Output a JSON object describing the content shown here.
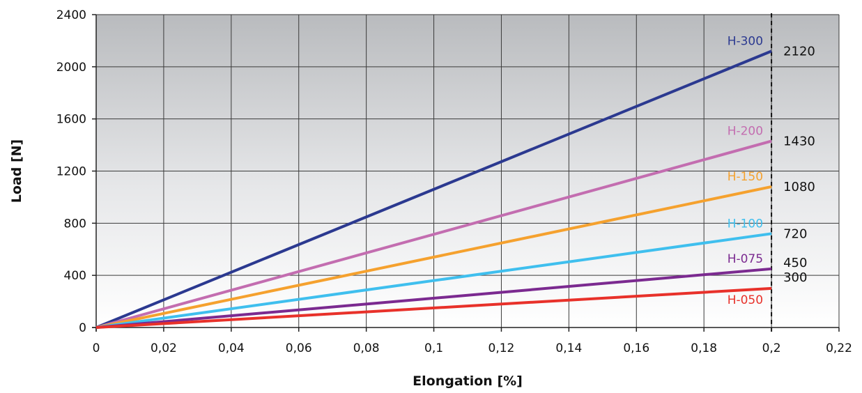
{
  "chart_data": {
    "type": "line",
    "title": "",
    "xlabel": "Elongation [%]",
    "ylabel": "Load [N]",
    "xlim": [
      0,
      0.22
    ],
    "ylim": [
      0,
      2400
    ],
    "x_ticks": [
      0,
      0.02,
      0.04,
      0.06,
      0.08,
      0.1,
      0.12,
      0.14,
      0.16,
      0.18,
      0.2,
      0.22
    ],
    "x_tick_labels": [
      "0",
      "0,02",
      "0,04",
      "0,06",
      "0,08",
      "0,1",
      "0,12",
      "0,14",
      "0,16",
      "0,18",
      "0,2",
      "0,22"
    ],
    "y_ticks": [
      0,
      400,
      800,
      1200,
      1600,
      2000,
      2400
    ],
    "y_tick_labels": [
      "0",
      "400",
      "800",
      "1200",
      "1600",
      "2000",
      "2400"
    ],
    "grid": true,
    "highlight_x": 0.2,
    "highlight_color": "#e8141b",
    "series": [
      {
        "name": "H-300",
        "x": [
          0,
          0.2
        ],
        "values": [
          0,
          2120
        ],
        "end_label": "2120",
        "color": "#2b3990"
      },
      {
        "name": "H-200",
        "x": [
          0,
          0.2
        ],
        "values": [
          0,
          1430
        ],
        "end_label": "1430",
        "color": "#c36db0"
      },
      {
        "name": "H-150",
        "x": [
          0,
          0.2
        ],
        "values": [
          0,
          1080
        ],
        "end_label": "1080",
        "color": "#f5a12e"
      },
      {
        "name": "H-100",
        "x": [
          0,
          0.2
        ],
        "values": [
          0,
          720
        ],
        "end_label": "720",
        "color": "#3fbfee"
      },
      {
        "name": "H-075",
        "x": [
          0,
          0.2
        ],
        "values": [
          0,
          450
        ],
        "end_label": "450",
        "color": "#7b2a90"
      },
      {
        "name": "H-050",
        "x": [
          0,
          0.2
        ],
        "values": [
          0,
          300
        ],
        "end_label": "300",
        "color": "#e8312a"
      }
    ]
  }
}
